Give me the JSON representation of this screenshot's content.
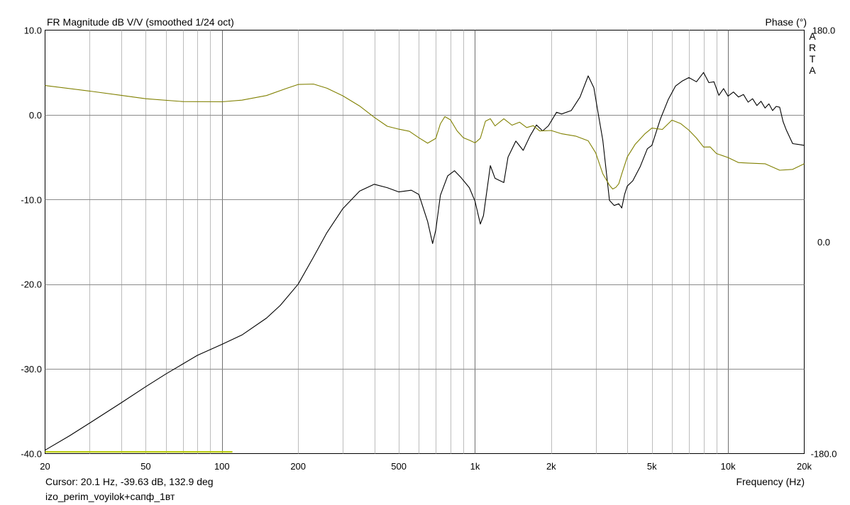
{
  "chart_data": {
    "type": "line",
    "title": "FR Magnitude dB V/V (smoothed 1/24 oct)",
    "right_axis_label": "Phase (°)",
    "watermark": "ARTA",
    "xlabel": "Frequency (Hz)",
    "xscale": "log",
    "xlim": [
      20,
      20000
    ],
    "ylim": [
      -40,
      10
    ],
    "y2lim": [
      -180,
      180
    ],
    "grid": true,
    "x_ticks": [
      "20",
      "50",
      "100",
      "200",
      "500",
      "1k",
      "2k",
      "5k",
      "10k",
      "20k"
    ],
    "x_tick_values": [
      20,
      50,
      100,
      200,
      500,
      1000,
      2000,
      5000,
      10000,
      20000
    ],
    "y_ticks": [
      "10.0",
      "0.0",
      "-10.0",
      "-20.0",
      "-30.0",
      "-40.0"
    ],
    "y_tick_values": [
      10,
      0,
      -10,
      -20,
      -30,
      -40
    ],
    "y2_ticks": [
      "180.0",
      "0.0",
      "-180.0"
    ],
    "y2_tick_values": [
      180,
      0,
      -180
    ],
    "series": [
      {
        "axis": "left",
        "color": "#000000",
        "x": [
          20,
          25,
          30,
          40,
          50,
          60,
          80,
          100,
          120,
          150,
          170,
          200,
          230,
          260,
          300,
          350,
          400,
          450,
          500,
          560,
          600,
          650,
          680,
          700,
          730,
          780,
          830,
          880,
          950,
          1000,
          1050,
          1080,
          1150,
          1200,
          1300,
          1350,
          1450,
          1550,
          1650,
          1750,
          1850,
          1950,
          2100,
          2200,
          2400,
          2600,
          2800,
          2950,
          3050,
          3200,
          3400,
          3550,
          3700,
          3800,
          3900,
          4000,
          4200,
          4500,
          4800,
          5000,
          5400,
          5800,
          6200,
          6600,
          7000,
          7500,
          8000,
          8400,
          8800,
          9200,
          9600,
          10000,
          10500,
          11000,
          11500,
          12000,
          12500,
          13000,
          13500,
          14000,
          14500,
          15000,
          15500,
          16000,
          16500,
          17000,
          18000,
          19000,
          20000
        ],
        "values": [
          -39.6,
          -37.9,
          -36.4,
          -34.0,
          -32.1,
          -30.6,
          -28.4,
          -27.1,
          -26.0,
          -24.0,
          -22.5,
          -20.0,
          -16.8,
          -13.9,
          -11.1,
          -9.0,
          -8.2,
          -8.6,
          -9.1,
          -8.9,
          -9.4,
          -12.6,
          -15.2,
          -13.6,
          -9.5,
          -7.2,
          -6.6,
          -7.4,
          -8.6,
          -10.2,
          -12.9,
          -11.9,
          -6.0,
          -7.5,
          -8.0,
          -5.0,
          -3.1,
          -4.2,
          -2.5,
          -1.2,
          -1.9,
          -1.3,
          0.3,
          0.1,
          0.5,
          2.1,
          4.6,
          3.2,
          0.6,
          -3.0,
          -10.1,
          -10.7,
          -10.5,
          -11.0,
          -9.4,
          -8.4,
          -7.8,
          -6.1,
          -4.0,
          -3.6,
          -0.5,
          1.8,
          3.4,
          4.0,
          4.4,
          3.9,
          5.0,
          3.8,
          3.9,
          2.3,
          3.1,
          2.2,
          2.7,
          2.1,
          2.4,
          1.5,
          1.9,
          1.1,
          1.6,
          0.8,
          1.3,
          0.5,
          1.0,
          0.9,
          -0.8,
          -1.8,
          -3.4,
          -3.5,
          -3.6
        ]
      },
      {
        "axis": "right",
        "color": "#808000",
        "x": [
          20,
          30,
          40,
          50,
          70,
          100,
          120,
          150,
          180,
          200,
          230,
          260,
          300,
          350,
          400,
          450,
          500,
          550,
          600,
          650,
          700,
          730,
          760,
          800,
          850,
          900,
          950,
          1000,
          1050,
          1100,
          1150,
          1200,
          1300,
          1400,
          1500,
          1600,
          1700,
          1800,
          2000,
          2200,
          2500,
          2800,
          3000,
          3200,
          3400,
          3500,
          3600,
          3700,
          3800,
          4000,
          4300,
          4700,
          5000,
          5500,
          6000,
          6500,
          7000,
          7500,
          8000,
          8500,
          9000,
          10000,
          11000,
          12000,
          14000,
          16000,
          18000,
          20000
        ],
        "values": [
          132.9,
          128.2,
          124.6,
          121.7,
          119.3,
          119.1,
          120.5,
          124.4,
          130.5,
          133.8,
          134.2,
          130.6,
          124.2,
          115.5,
          105.9,
          98.3,
          95.8,
          94.0,
          88.5,
          83.9,
          88.0,
          100.4,
          106.5,
          103.7,
          94.3,
          88.5,
          86.5,
          84.2,
          88.1,
          102.6,
          104.7,
          98.6,
          104.7,
          99.2,
          101.7,
          97.2,
          98.8,
          94.3,
          94.7,
          91.9,
          89.9,
          85.9,
          75.6,
          57.9,
          48.1,
          44.9,
          46.3,
          49.3,
          57.7,
          72.3,
          83.1,
          92.0,
          96.7,
          95.6,
          103.5,
          100.5,
          95.0,
          88.3,
          80.6,
          80.7,
          75.1,
          71.7,
          67.4,
          67.0,
          66.4,
          60.9,
          61.6,
          66.4
        ]
      },
      {
        "axis": "left",
        "color": "#b5c800",
        "x": [
          20,
          110
        ],
        "values": [
          -39.8,
          -39.8
        ]
      }
    ]
  },
  "cursor_readout": "Cursor: 20.1 Hz, -39.63 dB, 132.9 deg",
  "file_name": "izo_perim_voyilok+сапф_1вт"
}
